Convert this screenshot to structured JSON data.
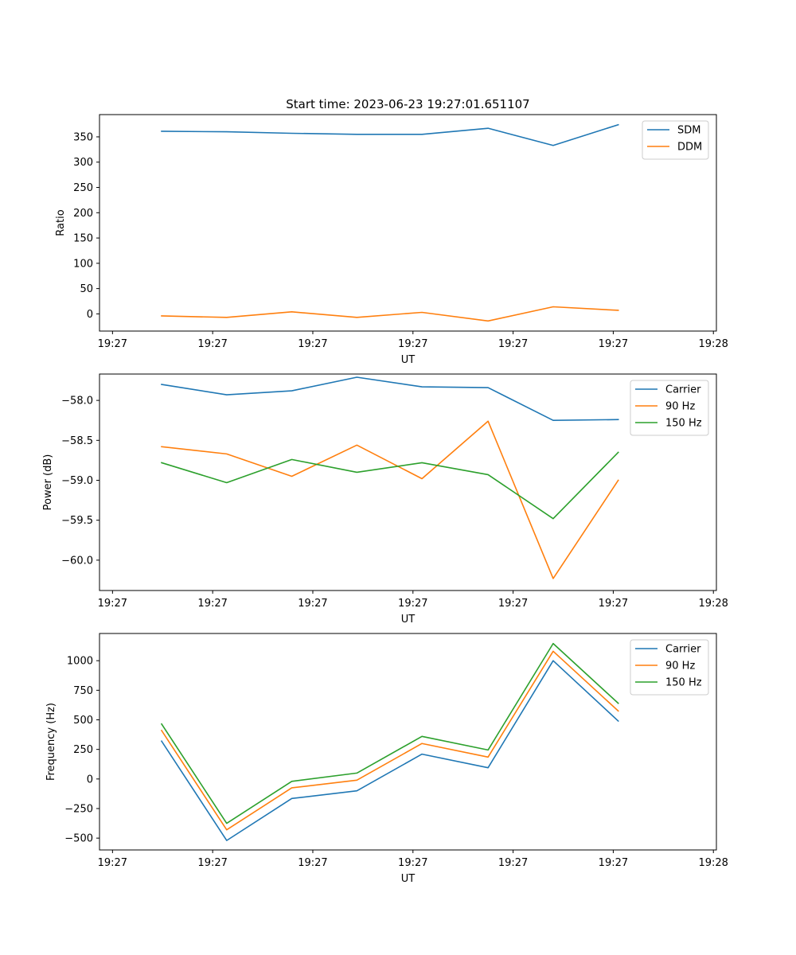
{
  "title": "Start time: 2023-06-23 19:27:01.651107",
  "x_axis": {
    "label": "UT",
    "ticks": [
      {
        "t": 0,
        "label": "19:27"
      },
      {
        "t": 10,
        "label": "19:27"
      },
      {
        "t": 20,
        "label": "19:27"
      },
      {
        "t": 30,
        "label": "19:27"
      },
      {
        "t": 40,
        "label": "19:27"
      },
      {
        "t": 50,
        "label": "19:27"
      },
      {
        "t": 60,
        "label": "19:28"
      }
    ],
    "range": [
      -1.3,
      60.3
    ]
  },
  "chart_data": [
    {
      "type": "line",
      "ylabel": "Ratio",
      "ylim": [
        -34,
        394
      ],
      "yticks": [
        0,
        50,
        100,
        150,
        200,
        250,
        300,
        350
      ],
      "yticklabels": [
        "0",
        "50",
        "100",
        "150",
        "200",
        "250",
        "300",
        "350"
      ],
      "legend": "top-right",
      "x": [
        4.9,
        11.4,
        17.9,
        24.4,
        30.9,
        37.5,
        44.0,
        50.5
      ],
      "series": [
        {
          "name": "SDM",
          "color": "#1f77b4",
          "values": [
            361,
            360,
            357,
            355,
            355,
            367,
            333,
            374
          ]
        },
        {
          "name": "DDM",
          "color": "#ff7f0e",
          "values": [
            -4,
            -7,
            4,
            -7,
            3,
            -14,
            14,
            7
          ]
        }
      ]
    },
    {
      "type": "line",
      "ylabel": "Power (dB)",
      "ylim": [
        -60.38,
        -57.67
      ],
      "yticks": [
        -60.0,
        -59.5,
        -59.0,
        -58.5,
        -58.0
      ],
      "yticklabels": [
        "−60.0",
        "−59.5",
        "−59.0",
        "−58.5",
        "−58.0"
      ],
      "legend": "top-right",
      "x": [
        4.9,
        11.4,
        17.9,
        24.4,
        30.9,
        37.5,
        44.0,
        50.5
      ],
      "series": [
        {
          "name": "Carrier",
          "color": "#1f77b4",
          "values": [
            -57.8,
            -57.93,
            -57.88,
            -57.71,
            -57.83,
            -57.84,
            -58.25,
            -58.24
          ]
        },
        {
          "name": "90 Hz",
          "color": "#ff7f0e",
          "values": [
            -58.58,
            -58.67,
            -58.95,
            -58.56,
            -58.98,
            -58.26,
            -60.23,
            -59.0
          ]
        },
        {
          "name": "150 Hz",
          "color": "#2ca02c",
          "values": [
            -58.78,
            -59.03,
            -58.74,
            -58.9,
            -58.78,
            -58.93,
            -59.48,
            -58.65
          ]
        }
      ]
    },
    {
      "type": "line",
      "ylabel": "Frequency (Hz)",
      "ylim": [
        -600,
        1230
      ],
      "yticks": [
        -500,
        -250,
        0,
        250,
        500,
        750,
        1000
      ],
      "yticklabels": [
        "−500",
        "−250",
        "0",
        "250",
        "500",
        "750",
        "1000"
      ],
      "legend": "top-right",
      "x": [
        4.9,
        11.4,
        17.9,
        24.4,
        30.9,
        37.5,
        44.0,
        50.5
      ],
      "series": [
        {
          "name": "Carrier",
          "color": "#1f77b4",
          "values": [
            320,
            -520,
            -165,
            -100,
            210,
            95,
            1000,
            490
          ]
        },
        {
          "name": "90 Hz",
          "color": "#ff7f0e",
          "values": [
            410,
            -430,
            -75,
            -10,
            300,
            185,
            1080,
            575
          ]
        },
        {
          "name": "150 Hz",
          "color": "#2ca02c",
          "values": [
            465,
            -375,
            -20,
            50,
            360,
            245,
            1145,
            640
          ]
        }
      ]
    }
  ]
}
